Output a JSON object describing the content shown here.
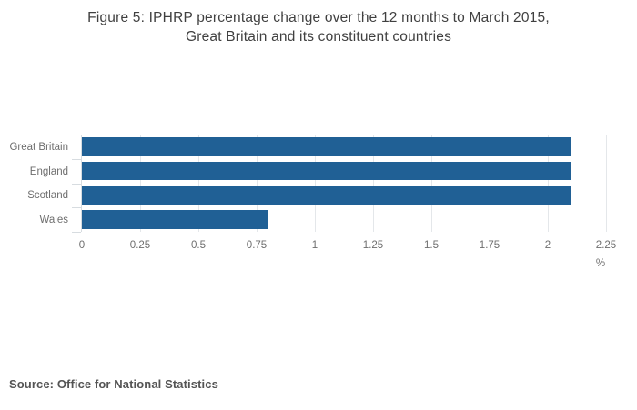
{
  "title": {
    "line1": "Figure 5: IPHRP percentage change over the 12 months to March 2015,",
    "line2": "Great Britain and its constituent countries"
  },
  "source": "Source: Office for National Statistics",
  "colors": {
    "bar": "#206095",
    "gridline": "#e4e7ea",
    "axis": "#d7dce0",
    "tick_text": "#6e6e6e",
    "title_text": "#404040",
    "source_text": "#545454"
  },
  "chart_data": {
    "type": "bar",
    "orientation": "horizontal",
    "title": "Figure 5: IPHRP percentage change over the 12 months to March 2015, Great Britain and its constituent countries",
    "categories": [
      "Great Britain",
      "England",
      "Scotland",
      "Wales"
    ],
    "values": [
      2.1,
      2.1,
      2.1,
      0.8
    ],
    "xlabel": "%",
    "ylabel": "",
    "xlim": [
      0,
      2.25
    ],
    "xticks": [
      0,
      0.25,
      0.5,
      0.75,
      1,
      1.25,
      1.5,
      1.75,
      2,
      2.25
    ],
    "xtick_labels": [
      "0",
      "0.25",
      "0.5",
      "0.75",
      "1",
      "1.25",
      "1.5",
      "1.75",
      "2",
      "2.25"
    ],
    "grid": true,
    "legend": false
  }
}
